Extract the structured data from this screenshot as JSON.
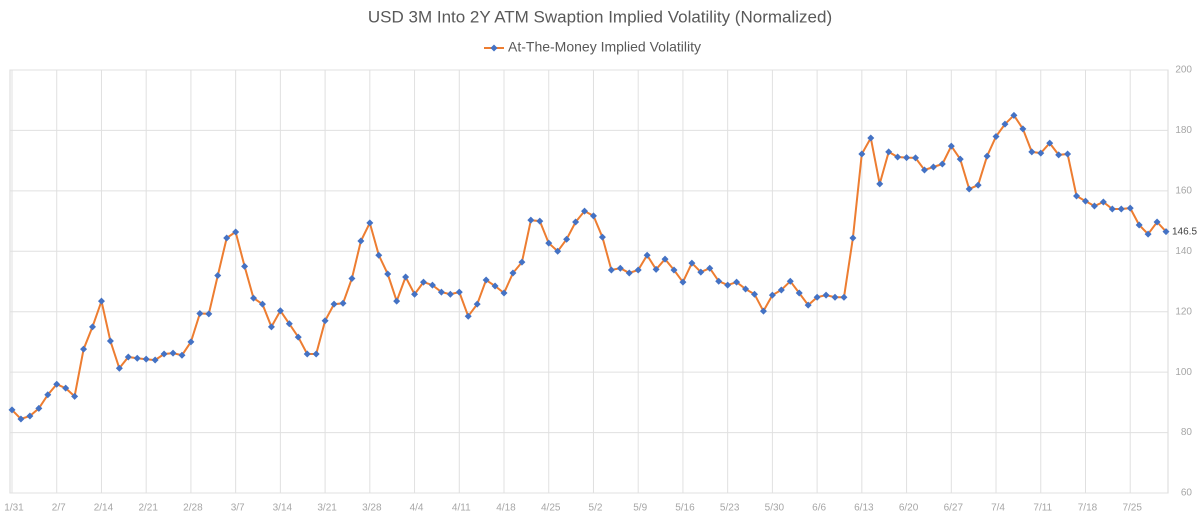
{
  "chart_data": {
    "type": "line",
    "title": "USD 3M Into 2Y ATM Swaption Implied Volatility (Normalized)",
    "categories": [
      "1/31",
      null,
      null,
      null,
      null,
      "2/7",
      null,
      null,
      null,
      null,
      "2/14",
      null,
      null,
      null,
      null,
      "2/21",
      null,
      null,
      null,
      null,
      "2/28",
      null,
      null,
      null,
      null,
      "3/7",
      null,
      null,
      null,
      null,
      "3/14",
      null,
      null,
      null,
      null,
      "3/21",
      null,
      null,
      null,
      null,
      "3/28",
      null,
      null,
      null,
      null,
      "4/4",
      null,
      null,
      null,
      null,
      "4/11",
      null,
      null,
      null,
      null,
      "4/18",
      null,
      null,
      null,
      null,
      "4/25",
      null,
      null,
      null,
      null,
      "5/2",
      null,
      null,
      null,
      null,
      "5/9",
      null,
      null,
      null,
      null,
      "5/16",
      null,
      null,
      null,
      null,
      "5/23",
      null,
      null,
      null,
      null,
      "5/30",
      null,
      null,
      null,
      null,
      "6/6",
      null,
      null,
      null,
      null,
      "6/13",
      null,
      null,
      null,
      null,
      "6/20",
      null,
      null,
      null,
      null,
      "6/27",
      null,
      null,
      null,
      null,
      "7/4",
      null,
      null,
      null,
      null,
      "7/11",
      null,
      null,
      null,
      null,
      "7/18",
      null,
      null,
      null,
      null,
      "7/25",
      null,
      null,
      null,
      null
    ],
    "series": [
      {
        "name": "At-The-Money Implied Volatility",
        "color": "#ed7d31",
        "marker_color": "#4472c4",
        "values": [
          87.5,
          84.5,
          85.5,
          88,
          92.5,
          96,
          94.7,
          92,
          107.6,
          115,
          123.5,
          110.3,
          101.3,
          105,
          104.6,
          104.3,
          104,
          106,
          106.3,
          105.6,
          110,
          119.4,
          119.3,
          132,
          144.4,
          146.4,
          135,
          124.5,
          122.5,
          115,
          120.3,
          116,
          111.6,
          106,
          106,
          117,
          122.5,
          122.8,
          131,
          143.4,
          149.4,
          138.7,
          132.5,
          123.5,
          131.5,
          125.8,
          129.8,
          128.8,
          126.5,
          125.8,
          126.5,
          118.5,
          122.5,
          130.5,
          128.5,
          126.2,
          132.8,
          136.4,
          150.3,
          150,
          142.7,
          140,
          144,
          149.7,
          153.3,
          151.7,
          144.7,
          133.8,
          134.4,
          132.8,
          133.8,
          138.7,
          134,
          137.4,
          133.8,
          129.8,
          136.1,
          133.1,
          134.4,
          130.1,
          128.8,
          129.8,
          127.5,
          125.8,
          120.2,
          125.5,
          127.2,
          130.1,
          126.2,
          122.2,
          124.8,
          125.5,
          124.8,
          124.8,
          144.4,
          172.2,
          177.5,
          162.3,
          172.9,
          171.2,
          171,
          170.9,
          166.9,
          167.9,
          168.9,
          174.8,
          170.5,
          160.6,
          161.9,
          171.5,
          178,
          182.1,
          185,
          180.5,
          172.9,
          172.5,
          175.8,
          171.9,
          172.2,
          158.3,
          156.6,
          155,
          156.3,
          154,
          154,
          154.3,
          148.7,
          145.7,
          149.7,
          146.5
        ]
      }
    ],
    "ylim": [
      60,
      200
    ],
    "yticks": [
      60,
      80,
      100,
      120,
      140,
      160,
      180,
      200
    ],
    "grid": true,
    "legend": "top"
  }
}
